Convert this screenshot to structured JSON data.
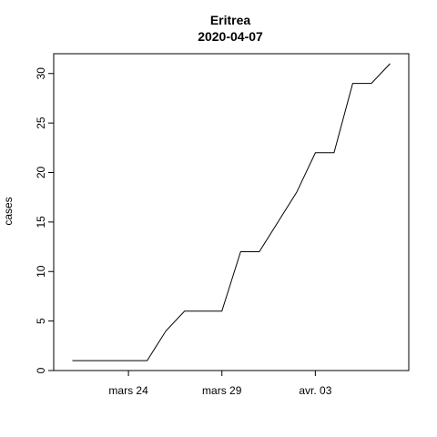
{
  "chart_data": {
    "type": "line",
    "title": "Eritrea",
    "subtitle": "2020-04-07",
    "xlabel": "",
    "ylabel": "cases",
    "x": [
      "2020-03-21",
      "2020-03-22",
      "2020-03-23",
      "2020-03-24",
      "2020-03-25",
      "2020-03-26",
      "2020-03-27",
      "2020-03-28",
      "2020-03-29",
      "2020-03-30",
      "2020-03-31",
      "2020-04-01",
      "2020-04-02",
      "2020-04-03",
      "2020-04-04",
      "2020-04-05",
      "2020-04-06",
      "2020-04-07"
    ],
    "values": [
      1,
      1,
      1,
      1,
      1,
      4,
      6,
      6,
      6,
      12,
      12,
      15,
      18,
      22,
      22,
      29,
      29,
      31
    ],
    "xlim": [
      "2020-03-20",
      "2020-04-08"
    ],
    "ylim": [
      0,
      32
    ],
    "x_ticks": [
      {
        "date": "2020-03-24",
        "label": "mars 24"
      },
      {
        "date": "2020-03-29",
        "label": "mars 29"
      },
      {
        "date": "2020-04-03",
        "label": "avr. 03"
      }
    ],
    "y_ticks": [
      0,
      5,
      10,
      15,
      20,
      25,
      30
    ],
    "grid": false,
    "line_color": "#000000"
  }
}
